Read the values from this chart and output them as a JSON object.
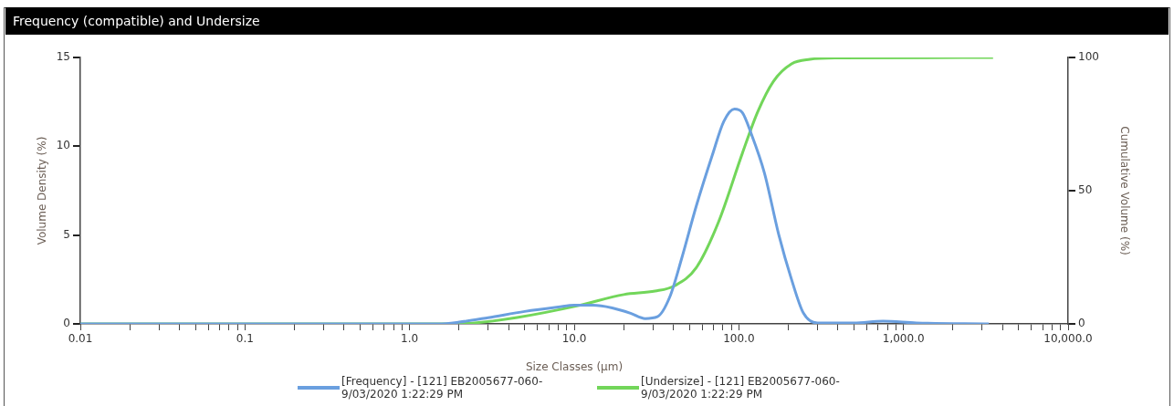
{
  "chart_data": {
    "type": "line",
    "title": "Frequency (compatible) and Undersize",
    "xlabel": "Size Classes (µm)",
    "ylabel": "Volume Density (%)",
    "y2label": "Cumulative Volume (%)",
    "log": "x",
    "grid": false,
    "legend": "bottom",
    "marker": "none",
    "line_style": "solid",
    "xlim": [
      0.01,
      10000
    ],
    "xticks": [
      {
        "value": 0.01,
        "label": "0.01"
      },
      {
        "value": 0.02,
        "label": null
      },
      {
        "value": 0.03,
        "label": null
      },
      {
        "value": 0.04,
        "label": null
      },
      {
        "value": 0.05,
        "label": null
      },
      {
        "value": 0.06,
        "label": null
      },
      {
        "value": 0.07,
        "label": null
      },
      {
        "value": 0.08,
        "label": null
      },
      {
        "value": 0.09,
        "label": null
      },
      {
        "value": 0.1,
        "label": "0.1"
      },
      {
        "value": 0.2,
        "label": null
      },
      {
        "value": 0.3,
        "label": null
      },
      {
        "value": 0.4,
        "label": null
      },
      {
        "value": 0.5,
        "label": null
      },
      {
        "value": 0.6,
        "label": null
      },
      {
        "value": 0.7,
        "label": null
      },
      {
        "value": 0.8,
        "label": null
      },
      {
        "value": 0.9,
        "label": null
      },
      {
        "value": 1,
        "label": "1.0"
      },
      {
        "value": 2,
        "label": null
      },
      {
        "value": 3,
        "label": null
      },
      {
        "value": 4,
        "label": null
      },
      {
        "value": 5,
        "label": null
      },
      {
        "value": 6,
        "label": null
      },
      {
        "value": 7,
        "label": null
      },
      {
        "value": 8,
        "label": null
      },
      {
        "value": 9,
        "label": null
      },
      {
        "value": 10,
        "label": "10.0"
      },
      {
        "value": 20,
        "label": null
      },
      {
        "value": 30,
        "label": null
      },
      {
        "value": 40,
        "label": null
      },
      {
        "value": 50,
        "label": null
      },
      {
        "value": 60,
        "label": null
      },
      {
        "value": 70,
        "label": null
      },
      {
        "value": 80,
        "label": null
      },
      {
        "value": 90,
        "label": null
      },
      {
        "value": 100,
        "label": "100.0"
      },
      {
        "value": 200,
        "label": null
      },
      {
        "value": 300,
        "label": null
      },
      {
        "value": 400,
        "label": null
      },
      {
        "value": 500,
        "label": null
      },
      {
        "value": 600,
        "label": null
      },
      {
        "value": 700,
        "label": null
      },
      {
        "value": 800,
        "label": null
      },
      {
        "value": 900,
        "label": null
      },
      {
        "value": 1000,
        "label": "1,000.0"
      },
      {
        "value": 2000,
        "label": null
      },
      {
        "value": 3000,
        "label": null
      },
      {
        "value": 4000,
        "label": null
      },
      {
        "value": 5000,
        "label": null
      },
      {
        "value": 6000,
        "label": null
      },
      {
        "value": 7000,
        "label": null
      },
      {
        "value": 8000,
        "label": null
      },
      {
        "value": 9000,
        "label": null
      },
      {
        "value": 10000,
        "label": "10,000.0"
      }
    ],
    "ylim": [
      0,
      15
    ],
    "yticks": [
      0,
      5,
      10,
      15
    ],
    "y2lim": [
      0,
      100
    ],
    "y2ticks": [
      0,
      50,
      100
    ],
    "series": [
      {
        "name": "[Frequency] - [121] EB2005677-060-9/03/2020 1:22:29 PM",
        "color": "#6a9fdf",
        "x": [
          0.01,
          1.5,
          2,
          3,
          5,
          8,
          10,
          13,
          17,
          22,
          27,
          32,
          38,
          45,
          55,
          69,
          81,
          94,
          105,
          119,
          143,
          175,
          209,
          247,
          300,
          500,
          750,
          1200,
          3300
        ],
        "values": [
          0,
          0,
          0.1,
          0.35,
          0.7,
          0.95,
          1.05,
          1.05,
          0.9,
          0.6,
          0.3,
          0.4,
          1.5,
          3.7,
          6.6,
          9.5,
          11.4,
          12.1,
          11.9,
          10.7,
          8.5,
          5.0,
          2.5,
          0.6,
          0.05,
          0.05,
          0.15,
          0.05,
          0
        ]
      },
      {
        "name": "[Undersize] - [121] EB2005677-060-9/03/2020 1:22:29 PM",
        "color": "#72d65a",
        "axis": "y2",
        "x": [
          0.01,
          1.5,
          2.4,
          4.5,
          10.5,
          20,
          31,
          41,
          55,
          75,
          105,
          130,
          162,
          209,
          270,
          400,
          3500
        ],
        "values": [
          0,
          0,
          0.3,
          2.4,
          6.8,
          11,
          12.3,
          14.4,
          21,
          38,
          64,
          79.5,
          91,
          97.6,
          99.3,
          99.8,
          100
        ]
      }
    ]
  }
}
